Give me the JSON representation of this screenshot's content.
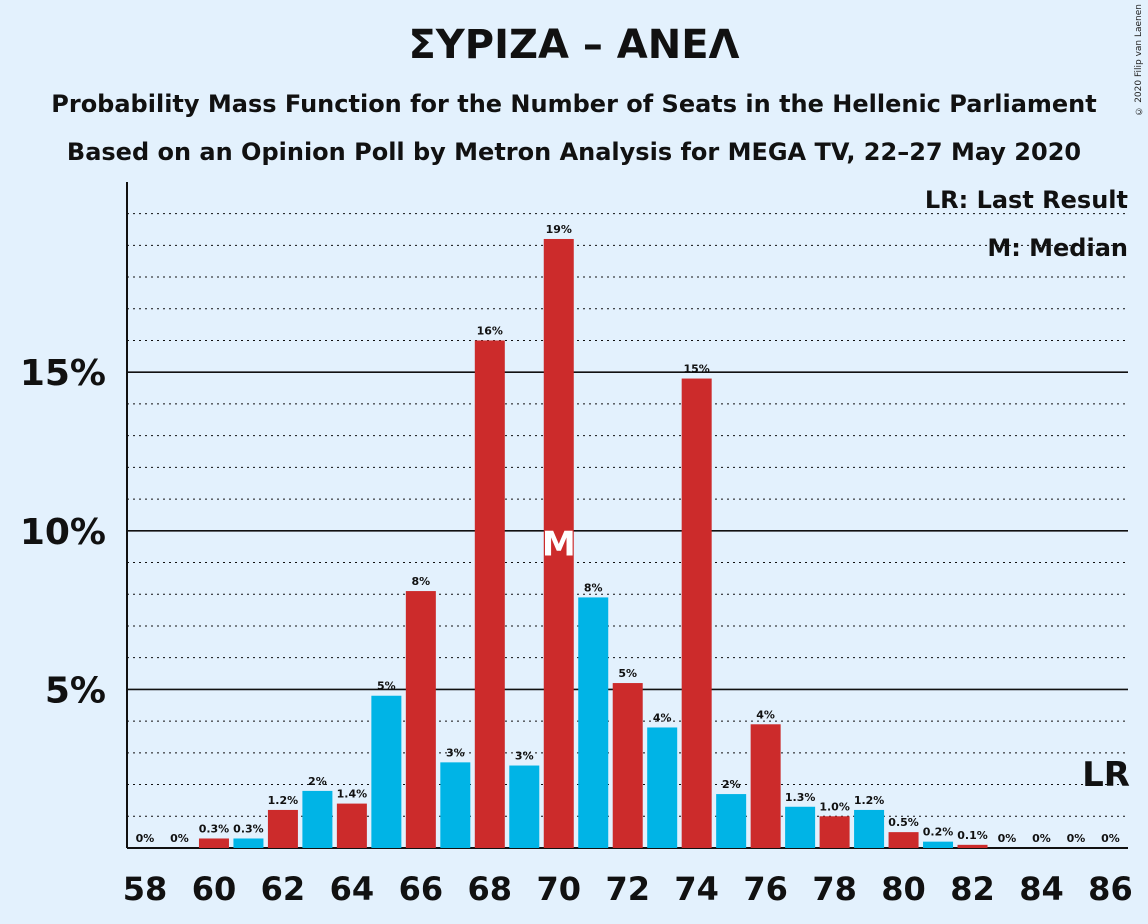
{
  "chart_data": {
    "type": "bar",
    "title": "ΣΥΡΙΖΑ – ΑΝΕΛ",
    "subtitle_lines": [
      "Probability Mass Function for the Number of Seats in the Hellenic Parliament",
      "Based on an Opinion Poll by Metron Analysis for MEGA TV, 22–27 May 2020"
    ],
    "copyright": "© 2020 Filip van Laenen",
    "legend": {
      "last_result": "LR: Last Result",
      "median": "M: Median"
    },
    "xlim": [
      58,
      86
    ],
    "ylim": [
      0,
      21
    ],
    "ytick_values": [
      5,
      10,
      15
    ],
    "ytick_labels": [
      "5%",
      "10%",
      "15%"
    ],
    "xtick_values": [
      58,
      60,
      62,
      64,
      66,
      68,
      70,
      72,
      74,
      76,
      78,
      80,
      82,
      84,
      86
    ],
    "xtick_labels": [
      "58",
      "60",
      "62",
      "64",
      "66",
      "68",
      "70",
      "72",
      "74",
      "76",
      "78",
      "80",
      "82",
      "84",
      "86"
    ],
    "x": [
      58,
      59,
      60,
      61,
      62,
      63,
      64,
      65,
      66,
      67,
      68,
      69,
      70,
      71,
      72,
      73,
      74,
      75,
      76,
      77,
      78,
      79,
      80,
      81,
      82,
      83,
      84,
      85,
      86
    ],
    "values": [
      0,
      0,
      0.3,
      0.3,
      1.2,
      1.8,
      1.4,
      4.8,
      8.1,
      2.7,
      16.0,
      2.6,
      19.2,
      7.9,
      5.2,
      3.8,
      14.8,
      1.7,
      3.9,
      1.3,
      1.0,
      1.2,
      0.5,
      0.2,
      0.1,
      0,
      0,
      0,
      0
    ],
    "labels": [
      "0%",
      "0%",
      "0.3%",
      "0.3%",
      "1.2%",
      "2%",
      "1.4%",
      "5%",
      "8%",
      "3%",
      "16%",
      "3%",
      "19%",
      "8%",
      "5%",
      "4%",
      "15%",
      "2%",
      "4%",
      "1.3%",
      "1.0%",
      "1.2%",
      "0.5%",
      "0.2%",
      "0.1%",
      "0%",
      "0%",
      "0%",
      "0%"
    ],
    "median_seat": 70,
    "median_marker": "M",
    "last_result_seat": 86,
    "last_result_marker": "LR",
    "colors": {
      "red": "#cc2b2b",
      "blue": "#00b4e6",
      "background": "#e3f1fd",
      "text": "#111111"
    }
  }
}
